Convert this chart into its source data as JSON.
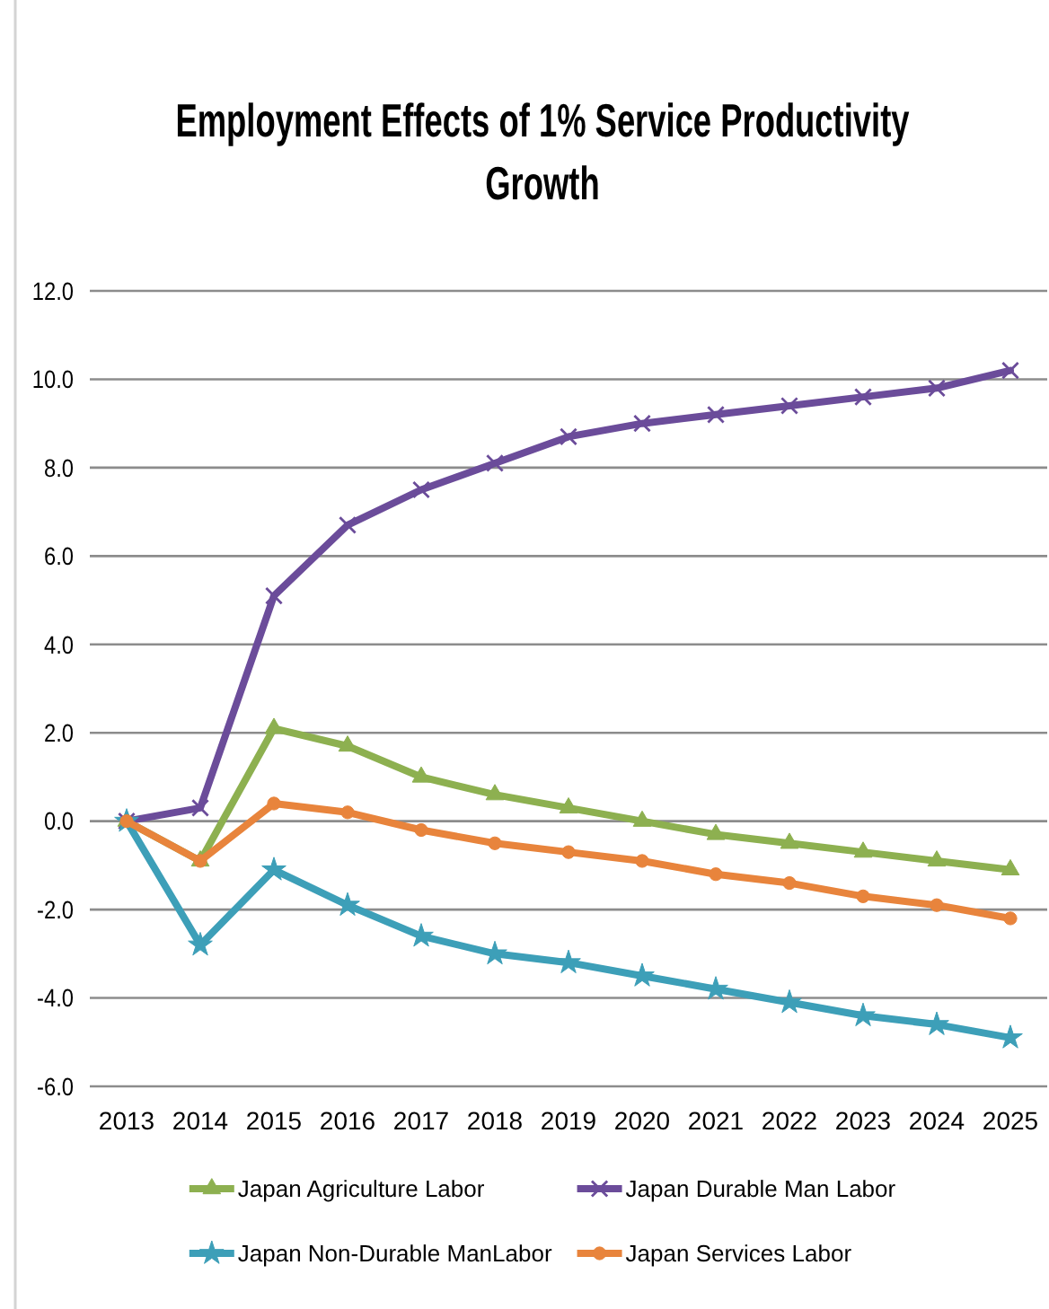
{
  "chart_data": {
    "type": "line",
    "title": "Employment Effects of 1% Service Productivity Growth",
    "categories": [
      "2013",
      "2014",
      "2015",
      "2016",
      "2017",
      "2018",
      "2019",
      "2020",
      "2021",
      "2022",
      "2023",
      "2024",
      "2025"
    ],
    "series": [
      {
        "name": "Japan Agriculture Labor",
        "color": "#8db050",
        "marker": "triangle",
        "values": [
          0,
          -0.9,
          2.1,
          1.7,
          1.0,
          0.6,
          0.3,
          0.0,
          -0.3,
          -0.5,
          -0.7,
          -0.9,
          -1.1
        ]
      },
      {
        "name": "Japan Durable Man Labor",
        "color": "#6b4c9a",
        "marker": "cross",
        "values": [
          0,
          0.3,
          5.1,
          6.7,
          7.5,
          8.1,
          8.7,
          9.0,
          9.2,
          9.4,
          9.6,
          9.8,
          10.2
        ]
      },
      {
        "name": "Japan Non-Durable ManLabor",
        "color": "#3d9fb8",
        "marker": "star",
        "values": [
          0,
          -2.8,
          -1.1,
          -1.9,
          -2.6,
          -3.0,
          -3.2,
          -3.5,
          -3.8,
          -4.1,
          -4.4,
          -4.6,
          -4.9
        ]
      },
      {
        "name": "Japan Services Labor",
        "color": "#e8843c",
        "marker": "circle",
        "values": [
          0,
          -0.9,
          0.4,
          0.2,
          -0.2,
          -0.5,
          -0.7,
          -0.9,
          -1.2,
          -1.4,
          -1.7,
          -1.9,
          -2.2
        ]
      }
    ],
    "ylim": [
      -6,
      12
    ],
    "yticks": [
      {
        "value": -6,
        "label": "-6.0"
      },
      {
        "value": -4,
        "label": "-4.0"
      },
      {
        "value": -2,
        "label": "-2.0"
      },
      {
        "value": 0,
        "label": "0.0"
      },
      {
        "value": 2,
        "label": "2.0"
      },
      {
        "value": 4,
        "label": "4.0"
      },
      {
        "value": 6,
        "label": "6.0"
      },
      {
        "value": 8,
        "label": "8.0"
      },
      {
        "value": 10,
        "label": "10.0"
      },
      {
        "value": 12,
        "label": "12.0"
      }
    ],
    "grid": "y",
    "legend": "bottom",
    "line_style": "solid"
  }
}
